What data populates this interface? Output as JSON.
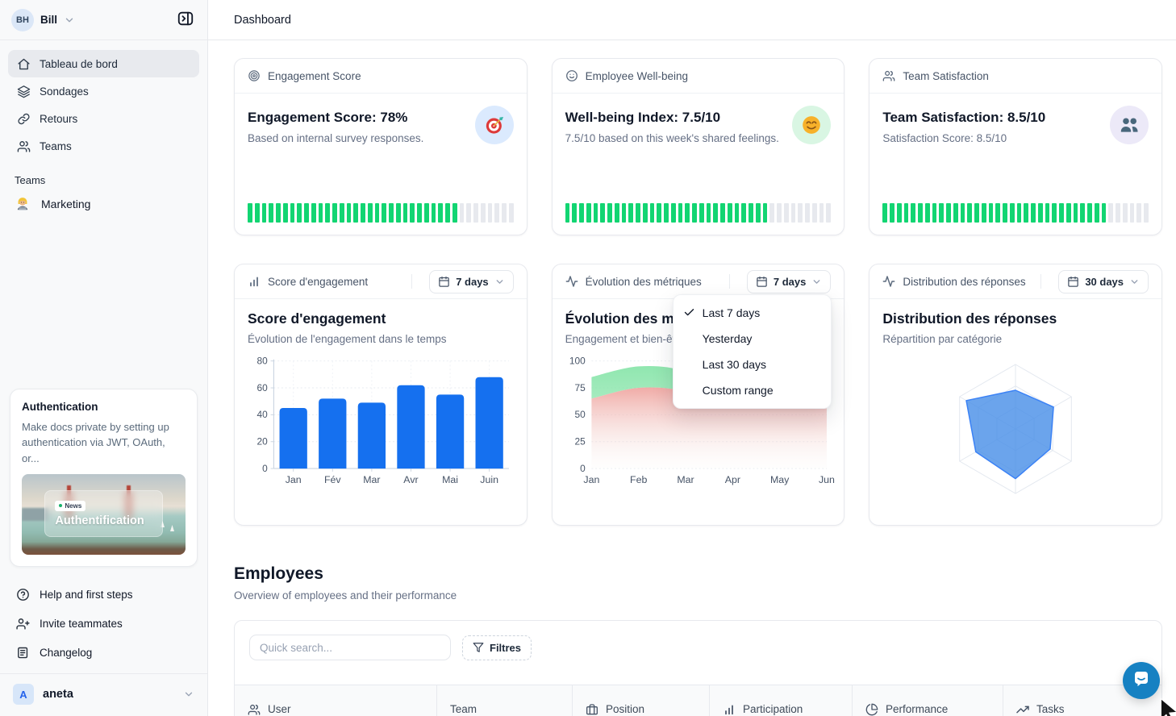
{
  "header": {
    "title": "Dashboard"
  },
  "sidebar": {
    "user": {
      "initials": "BH",
      "name": "Bill"
    },
    "nav": [
      {
        "label": "Tableau de bord",
        "icon": "home",
        "active": true
      },
      {
        "label": "Sondages",
        "icon": "layers",
        "active": false
      },
      {
        "label": "Retours",
        "icon": "link",
        "active": false
      },
      {
        "label": "Teams",
        "icon": "users",
        "active": false
      }
    ],
    "section_label": "Teams",
    "teams": [
      {
        "label": "Marketing",
        "icon": "technologist-emoji"
      }
    ],
    "promo": {
      "title": "Authentication",
      "body": "Make docs private by setting up authentication via JWT, OAuth, or...",
      "badge": "News",
      "image_caption": "Authentification"
    },
    "footer_links": [
      {
        "label": "Help and first steps",
        "icon": "help-circle"
      },
      {
        "label": "Invite teammates",
        "icon": "user-plus"
      },
      {
        "label": "Changelog",
        "icon": "changelog"
      }
    ],
    "workspace": {
      "initial": "A",
      "name": "aneta"
    }
  },
  "metric_cards": [
    {
      "header": "Engagement Score",
      "header_icon": "target-rings",
      "title": "Engagement Score: 78%",
      "subtitle": "Based on internal survey responses.",
      "badge_icon": "target-emoji",
      "badge_bg": "#dbeafe",
      "percent": 78
    },
    {
      "header": "Employee Well-being",
      "header_icon": "smiley-outline",
      "title": "Well-being Index: 7.5/10",
      "subtitle": "7.5/10 based on this week's shared feelings.",
      "badge_icon": "smiley-emoji",
      "badge_bg": "#d9f6e3",
      "percent": 75
    },
    {
      "header": "Team Satisfaction",
      "header_icon": "users",
      "title": "Team Satisfaction: 8.5/10",
      "subtitle": "Satisfaction Score: 8.5/10",
      "badge_icon": "people-emoji",
      "badge_bg": "#ece9f8",
      "percent": 85
    }
  ],
  "chart_cards": [
    {
      "header": "Score d'engagement",
      "header_icon": "bar-chart",
      "range_label": "7 days"
    },
    {
      "header": "Évolution des métriques",
      "header_icon": "activity",
      "range_label": "7 days"
    },
    {
      "header": "Distribution des réponses",
      "header_icon": "activity",
      "range_label": "30 days"
    }
  ],
  "dropdown_menu": {
    "items": [
      {
        "label": "Last 7 days",
        "checked": true
      },
      {
        "label": "Yesterday",
        "checked": false
      },
      {
        "label": "Last 30 days",
        "checked": false
      },
      {
        "label": "Custom range",
        "checked": false
      }
    ]
  },
  "chart_data": [
    {
      "id": "engagement-bar",
      "type": "bar",
      "title": "Score d'engagement",
      "subtitle": "Évolution de l'engagement dans le temps",
      "categories": [
        "Jan",
        "Fév",
        "Mar",
        "Avr",
        "Mai",
        "Juin"
      ],
      "values": [
        45,
        52,
        49,
        62,
        55,
        68
      ],
      "ylim": [
        0,
        80
      ],
      "yticks": [
        0,
        20,
        40,
        60,
        80
      ],
      "bar_color": "#1570ef",
      "grid": true,
      "legend": "none"
    },
    {
      "id": "metrics-area",
      "type": "area",
      "title": "Évolution des métriques",
      "subtitle": "Engagement et bien-être",
      "x": [
        "Jan",
        "Feb",
        "Mar",
        "Apr",
        "May",
        "Jun"
      ],
      "series": [
        {
          "name": "engagement",
          "color": "#8ee6ae",
          "values": [
            85,
            95,
            90,
            64,
            66,
            68
          ]
        },
        {
          "name": "bien-être",
          "color": "#efa49f",
          "values": [
            65,
            75,
            72,
            58,
            62,
            65
          ]
        }
      ],
      "ylim": [
        0,
        100
      ],
      "yticks": [
        0,
        25,
        50,
        75,
        100
      ],
      "grid": true,
      "legend": "none"
    },
    {
      "id": "distribution-radar",
      "type": "radar",
      "title": "Distribution des réponses",
      "subtitle": "Répartition par catégorie",
      "axes_count": 6,
      "levels": 3,
      "values_fraction": [
        0.6,
        0.68,
        0.62,
        0.77,
        0.71,
        0.88
      ],
      "fill_color": "#4a90e8",
      "stroke_color": "#3b82f6",
      "grid_color": "#e3e8ef"
    }
  ],
  "employees": {
    "title": "Employees",
    "subtitle": "Overview of employees and their performance",
    "search_placeholder": "Quick search...",
    "filter_label": "Filtres",
    "columns": [
      {
        "label": "User",
        "icon": "users"
      },
      {
        "label": "Team",
        "icon": ""
      },
      {
        "label": "Position",
        "icon": "briefcase"
      },
      {
        "label": "Participation",
        "icon": "bar-chart"
      },
      {
        "label": "Performance",
        "icon": "pie-chart"
      },
      {
        "label": "Tasks",
        "icon": "trending-up"
      }
    ]
  },
  "colors": {
    "progress_green": "#12d572",
    "progress_gray": "#e7e9ee",
    "bar_blue": "#1570ef",
    "chat_bubble": "#1681c2"
  }
}
